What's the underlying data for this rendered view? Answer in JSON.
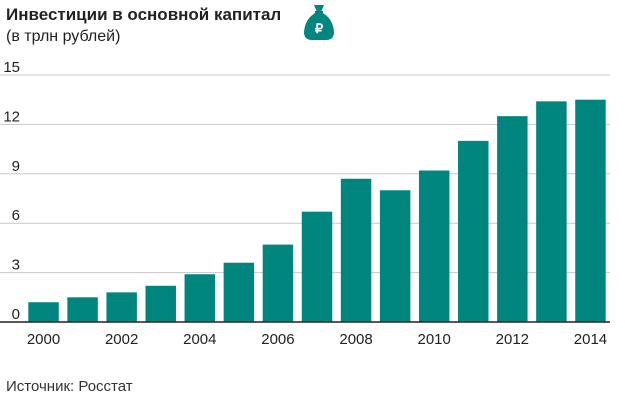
{
  "header": {
    "title": "Инвестиции в основной капитал",
    "subtitle": "(в трлн рублей)",
    "icon": "money-bag-ruble-icon",
    "icon_symbol": "₽"
  },
  "footer": {
    "source": "Источник: Росстат"
  },
  "colors": {
    "bar": "#00857f",
    "grid": "#c8c8c8",
    "axis": "#222222",
    "icon": "#00857f"
  },
  "chart_data": {
    "type": "bar",
    "title": "Инвестиции в основной капитал",
    "subtitle": "(в трлн рублей)",
    "xlabel": "",
    "ylabel": "",
    "categories": [
      "2000",
      "2001",
      "2002",
      "2003",
      "2004",
      "2005",
      "2006",
      "2007",
      "2008",
      "2009",
      "2010",
      "2011",
      "2012",
      "2013",
      "2014"
    ],
    "x_tick_labels": [
      "2000",
      "2002",
      "2004",
      "2006",
      "2008",
      "2010",
      "2012",
      "2014"
    ],
    "values": [
      1.2,
      1.5,
      1.8,
      2.2,
      2.9,
      3.6,
      4.7,
      6.7,
      8.7,
      8.0,
      9.2,
      11.0,
      12.5,
      13.4,
      13.5
    ],
    "ylim": [
      0,
      15
    ],
    "yticks": [
      0,
      3,
      6,
      9,
      12,
      15
    ],
    "grid": true,
    "legend": "none"
  }
}
